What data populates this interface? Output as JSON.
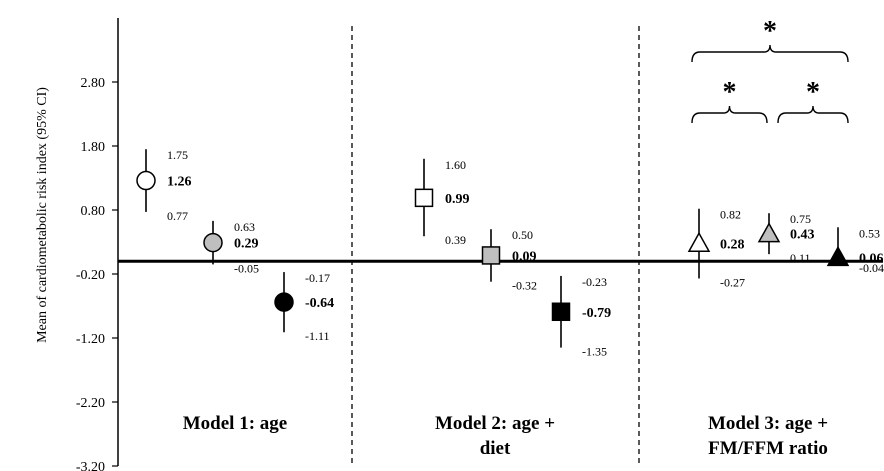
{
  "chart_data": {
    "type": "scatter",
    "ylabel": "Mean of cardiometabolic risk index (95% CI)",
    "ylim": [
      -3.2,
      3.8
    ],
    "yticks": [
      "2.80",
      "1.80",
      "0.80",
      "-0.20",
      "-1.20",
      "-2.20",
      "-3.20"
    ],
    "ytick_values": [
      2.8,
      1.8,
      0.8,
      -0.2,
      -1.2,
      -2.2,
      -3.2
    ],
    "reference_line": 0,
    "groups": [
      {
        "label_lines": [
          "Model 1: age"
        ],
        "points": [
          {
            "marker": "circle",
            "fill": "#ffffff",
            "mean": 1.26,
            "mean_label": "1.26",
            "upper": 1.75,
            "upper_label": "1.75",
            "lower": 0.77,
            "lower_label": "0.77"
          },
          {
            "marker": "circle",
            "fill": "#bfbfbf",
            "mean": 0.29,
            "mean_label": "0.29",
            "upper": 0.63,
            "upper_label": "0.63",
            "lower": -0.05,
            "lower_label": "-0.05"
          },
          {
            "marker": "circle",
            "fill": "#000000",
            "mean": -0.64,
            "mean_label": "-0.64",
            "upper": -0.17,
            "upper_label": "-0.17",
            "lower": -1.11,
            "lower_label": "-1.11"
          }
        ]
      },
      {
        "label_lines": [
          "Model 2: age +",
          "diet"
        ],
        "points": [
          {
            "marker": "square",
            "fill": "#ffffff",
            "mean": 0.99,
            "mean_label": "0.99",
            "upper": 1.6,
            "upper_label": "1.60",
            "lower": 0.39,
            "lower_label": "0.39"
          },
          {
            "marker": "square",
            "fill": "#bfbfbf",
            "mean": 0.09,
            "mean_label": "0.09",
            "upper": 0.5,
            "upper_label": "0.50",
            "lower": -0.32,
            "lower_label": "-0.32"
          },
          {
            "marker": "square",
            "fill": "#000000",
            "mean": -0.79,
            "mean_label": "-0.79",
            "upper": -0.23,
            "upper_label": "-0.23",
            "lower": -1.35,
            "lower_label": "-1.35"
          }
        ]
      },
      {
        "label_lines": [
          "Model 3: age +",
          "FM/FFM ratio"
        ],
        "points": [
          {
            "marker": "triangle",
            "fill": "#ffffff",
            "mean": 0.28,
            "mean_label": "0.28",
            "upper": 0.82,
            "upper_label": "0.82",
            "lower": -0.27,
            "lower_label": "-0.27"
          },
          {
            "marker": "triangle",
            "fill": "#bfbfbf",
            "mean": 0.43,
            "mean_label": "0.43",
            "upper": 0.75,
            "upper_label": "0.75",
            "lower": 0.11,
            "lower_label": "0.11"
          },
          {
            "marker": "triangle",
            "fill": "#000000",
            "mean": 0.06,
            "mean_label": "0.06",
            "upper": 0.53,
            "upper_label": "0.53",
            "lower": -0.04,
            "lower_label": "-0.04"
          }
        ]
      }
    ],
    "significance_marker": "*",
    "significance_brackets": [
      {
        "from_point": 0,
        "to_point": 2,
        "group": 2,
        "label": "*"
      },
      {
        "from_point": 0,
        "to_point": 1,
        "group": 2,
        "label": "*"
      },
      {
        "from_point": 1,
        "to_point": 2,
        "group": 2,
        "label": "*"
      }
    ]
  }
}
